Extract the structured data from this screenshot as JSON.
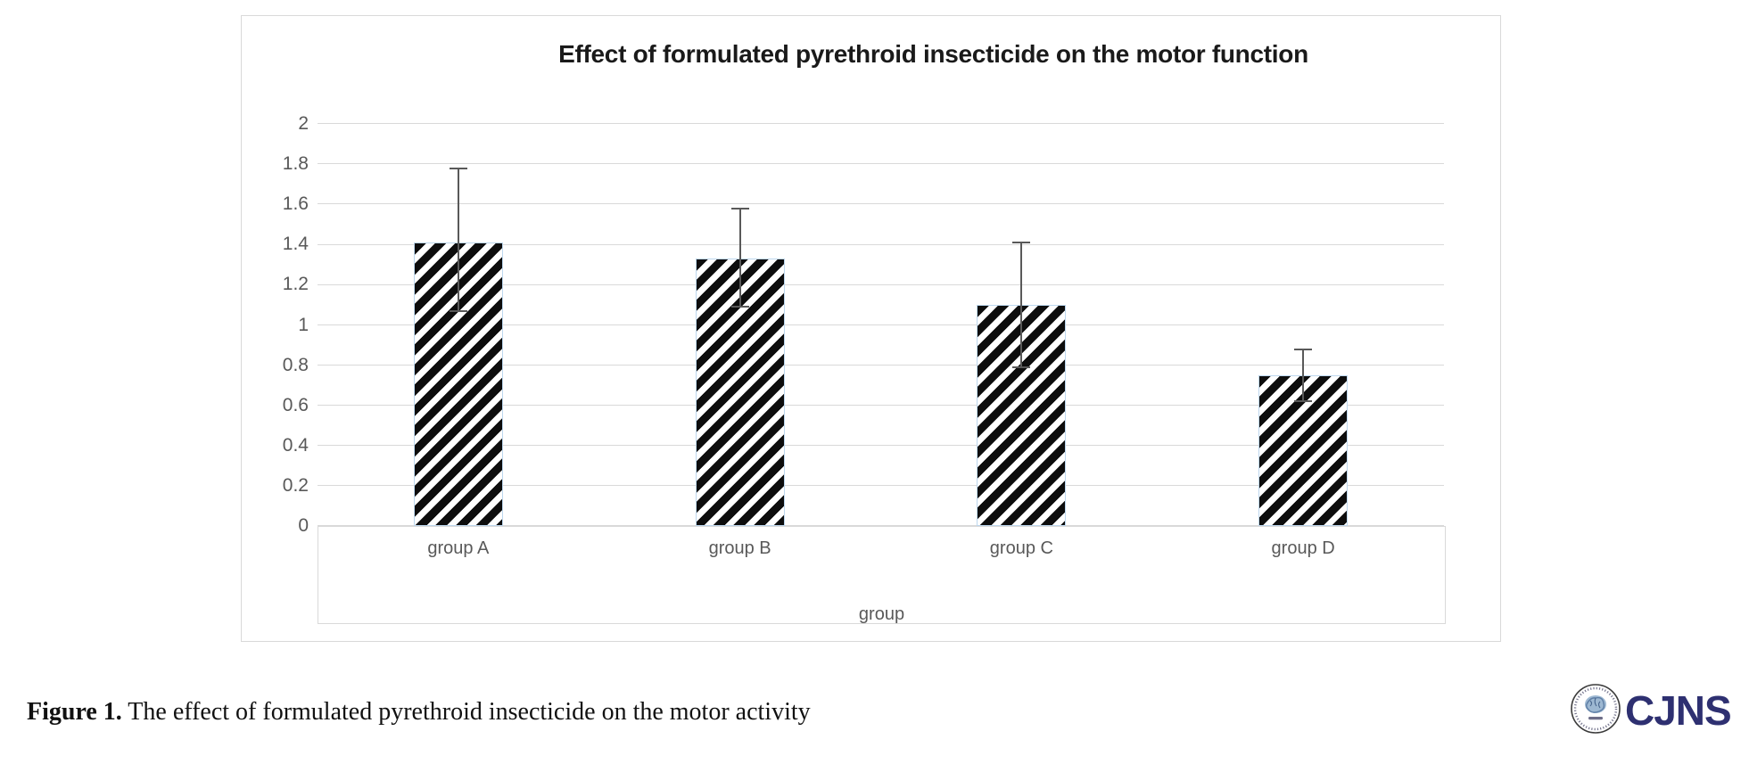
{
  "chart_data": {
    "type": "bar",
    "title": "Effect of formulated pyrethroid insecticide on the motor function",
    "categories": [
      "group A",
      "group B",
      "group C",
      "group D"
    ],
    "values": [
      1.41,
      1.33,
      1.1,
      0.75
    ],
    "error_high": [
      1.78,
      1.58,
      1.41,
      0.88
    ],
    "error_low": [
      1.07,
      1.09,
      0.79,
      0.62
    ],
    "xlabel": "group",
    "ylabel": "",
    "ylim": [
      0,
      2
    ],
    "yticks": [
      0,
      0.2,
      0.4,
      0.6,
      0.8,
      1,
      1.2,
      1.4,
      1.6,
      1.8,
      2
    ],
    "ytick_labels": [
      "0",
      "0.2",
      "0.4",
      "0.6",
      "0.8",
      "1",
      "1.2",
      "1.4",
      "1.6",
      "1.8",
      "2"
    ],
    "grid": true,
    "legend": false,
    "bar_style": "diagonal-hatch-black-on-white",
    "bar_border_color": "#bdd7ee",
    "gridline_color": "#d9d9d9",
    "axis_text_color": "#595959",
    "error_bar_color": "#595959"
  },
  "caption": {
    "label": "Figure 1.",
    "text": " The effect of formulated pyrethroid insecticide on the motor activity"
  },
  "logo": {
    "text": "CJNS",
    "color": "#2e3071",
    "seal_icon": "circular-seal-with-brain-emblem"
  }
}
